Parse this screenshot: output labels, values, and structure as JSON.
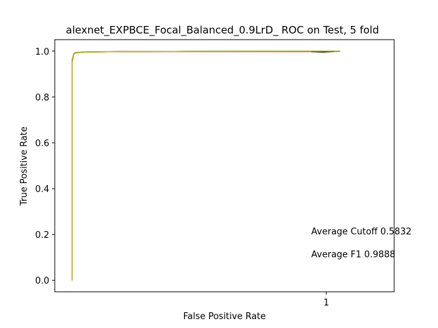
{
  "chart_data": {
    "type": "line",
    "title": "alexnet_EXPBCE_Focal_Balanced_0.9LrD_ ROC on Test, 5 fold",
    "xlabel": "False Positive Rate",
    "ylabel": "True Positive Rate",
    "xscale": "log",
    "xlim": [
      0.0001,
      10
    ],
    "ylim": [
      -0.05,
      1.05
    ],
    "xticks": [
      {
        "value": 1,
        "label": "1"
      }
    ],
    "yticks": [
      {
        "value": 0.0,
        "label": "0.0"
      },
      {
        "value": 0.2,
        "label": "0.2"
      },
      {
        "value": 0.4,
        "label": "0.4"
      },
      {
        "value": 0.6,
        "label": "0.6"
      },
      {
        "value": 0.8,
        "label": "0.8"
      },
      {
        "value": 1.0,
        "label": "1.0"
      }
    ],
    "grid": false,
    "series": [
      {
        "color": "#1f77b4",
        "x": [
          0.00018,
          0.00018,
          0.00019,
          0.0002,
          0.0003,
          0.001,
          0.01,
          1.6
        ],
        "y": [
          0.0,
          0.95,
          0.985,
          0.992,
          0.996,
          0.998,
          0.999,
          1.0
        ]
      },
      {
        "color": "#ff7f0e",
        "x": [
          0.00018,
          0.00018,
          0.00019,
          0.0002,
          0.0003,
          0.001,
          0.01,
          1.6
        ],
        "y": [
          0.0,
          0.96,
          0.988,
          0.994,
          0.997,
          0.998,
          0.999,
          1.0
        ]
      },
      {
        "color": "#2ca02c",
        "x": [
          0.00018,
          0.00018,
          0.00019,
          0.0002,
          0.0003,
          0.001,
          0.01,
          1.6
        ],
        "y": [
          0.0,
          0.95,
          0.986,
          0.993,
          0.996,
          0.998,
          0.999,
          1.0
        ]
      },
      {
        "color": "#d62728",
        "x": [
          0.00018,
          0.00018,
          0.00019,
          0.0002,
          0.0003,
          0.001,
          0.6,
          1.0,
          1.6
        ],
        "y": [
          0.0,
          0.96,
          0.987,
          0.993,
          0.996,
          0.998,
          0.998,
          0.997,
          0.999
        ]
      },
      {
        "color": "#000000",
        "x": [
          0.6,
          0.9,
          1.3
        ],
        "y": [
          0.998,
          0.996,
          0.999
        ]
      },
      {
        "color": "#bcbd22",
        "x": [
          0.00018,
          0.00018,
          0.00019,
          0.0002,
          0.0003,
          0.001,
          0.01,
          1.6
        ],
        "y": [
          0.0,
          0.955,
          0.987,
          0.993,
          0.996,
          0.998,
          0.999,
          1.0
        ]
      }
    ],
    "annotations": [
      {
        "text": "Average Cutoff 0.5832",
        "x": 0.6,
        "y": 0.2
      },
      {
        "text": "Average F1 0.9888",
        "x": 0.6,
        "y": 0.1
      }
    ]
  }
}
